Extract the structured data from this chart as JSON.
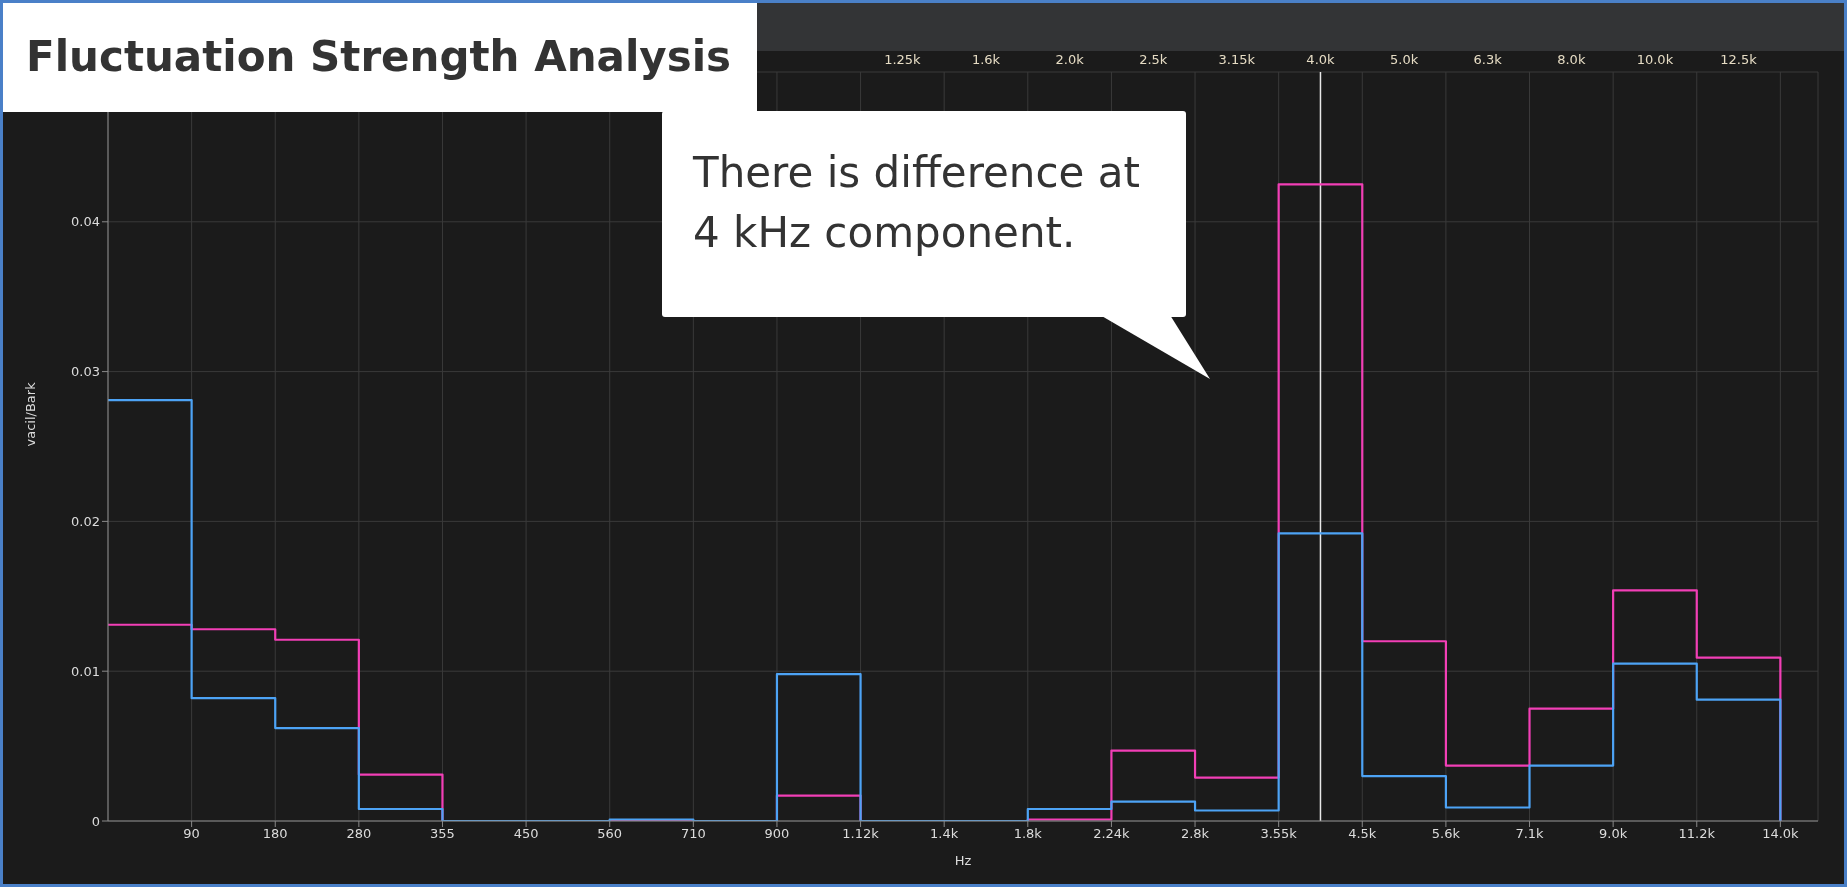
{
  "chart_data": {
    "type": "step",
    "title": "Fluctuation Strength Analysis",
    "xlabel": "Hz",
    "ylabel": "vacil/Bark",
    "annotations": [
      "There is difference at 4 kHz component."
    ],
    "categories": [
      null,
      null,
      "90",
      null,
      "180",
      null,
      "280",
      null,
      "355",
      null,
      "450",
      null,
      "560",
      null,
      "710",
      null,
      "900",
      null,
      "1.12k",
      "1.25k",
      "1.4k",
      "1.6k",
      "1.8k",
      "2.0k",
      "2.24k",
      "2.5k",
      "2.8k",
      "3.15k",
      "3.55k",
      "4.0k",
      "4.5k",
      "5.0k",
      "5.6k",
      "6.3k",
      "7.1k",
      "8.0k",
      "9.0k",
      "10.0k",
      "11.2k",
      "12.5k",
      "14.0k"
    ],
    "series": [
      {
        "color": "#f23fb6",
        "values": [
          0.0131,
          0.0131,
          0.0128,
          0.0128,
          0.0121,
          0.0121,
          0.0031,
          0.0031,
          0,
          0,
          0,
          0,
          0,
          0,
          0,
          0,
          0.0017,
          0.0017,
          0,
          0,
          0,
          0,
          0.0001,
          0.0001,
          0.0047,
          0.0047,
          0.0029,
          0.0029,
          0.0425,
          0.0425,
          0.012,
          0.012,
          0.0037,
          0.0037,
          0.0075,
          0.0075,
          0.0154,
          0.0154,
          0.0109,
          0.0109,
          0
        ]
      },
      {
        "color": "#4da3f5",
        "values": [
          0.0281,
          0.0281,
          0.0082,
          0.0082,
          0.0062,
          0.0062,
          0.0008,
          0.0008,
          0,
          0,
          0,
          0,
          0.0001,
          0.0001,
          0,
          0,
          0.0098,
          0.0098,
          0,
          0,
          0,
          0,
          0.0008,
          0.0008,
          0.0013,
          0.0013,
          0.0007,
          0.0007,
          0.0192,
          0.0192,
          0.003,
          0.003,
          0.0009,
          0.0009,
          0.0037,
          0.0037,
          0.0105,
          0.0105,
          0.0081,
          0.0081,
          0
        ]
      }
    ],
    "ylim": [
      0,
      0.05
    ],
    "yticks": [
      0,
      0.01,
      0.02,
      0.03,
      0.04
    ],
    "ref_lines": [
      {
        "axis": "x",
        "value": "4.0k",
        "color": "#e8e8e8"
      }
    ],
    "grid": true,
    "marker": "none",
    "line_style": "solid"
  }
}
